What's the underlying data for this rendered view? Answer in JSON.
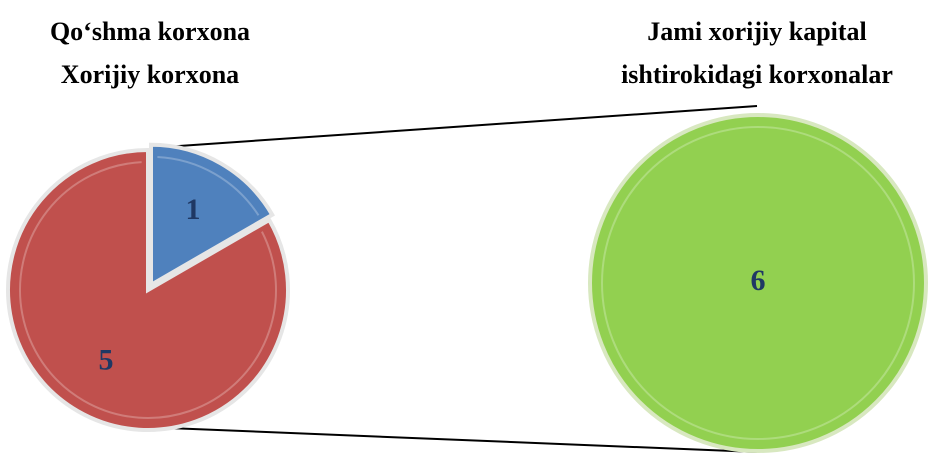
{
  "chart_data": [
    {
      "type": "pie",
      "categories": [
        "Qo‘shma korxona",
        "Xorijiy korxona"
      ],
      "values": [
        1,
        5
      ],
      "colors": [
        "#4f81bd",
        "#c0504d"
      ]
    },
    {
      "type": "pie",
      "categories": [
        "Jami xorijiy kapital ishtirokidagi korxonalar"
      ],
      "values": [
        6
      ],
      "colors": [
        "#92d050"
      ]
    }
  ]
}
